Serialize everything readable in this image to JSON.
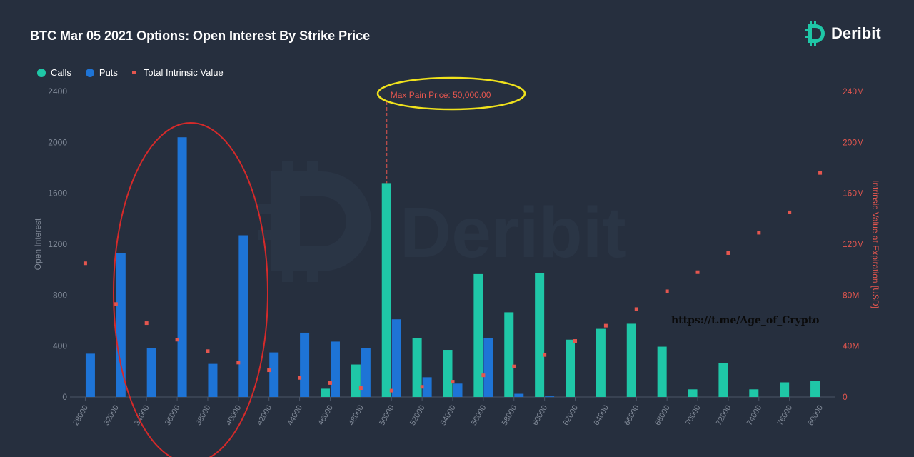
{
  "header": {
    "title": "BTC Mar 05 2021 Options: Open Interest By Strike Price",
    "brand": "Deribit",
    "watermark": "Deribit"
  },
  "legend": {
    "calls": "Calls",
    "puts": "Puts",
    "intrinsic": "Total Intrinsic Value"
  },
  "colors": {
    "background": "#262f3e",
    "calls": "#1fc7a7",
    "puts": "#1e74d6",
    "intrinsic": "#e4564f",
    "annotation_ellipse": "#f0e21c",
    "highlight_ellipse": "#d52a2a",
    "axis_text": "#7f8896"
  },
  "overlay": {
    "link": "https://t.me/Age_of_Crypto"
  },
  "chart_data": {
    "type": "bar",
    "title": "BTC Mar 05 2021 Options: Open Interest By Strike Price",
    "categories": [
      "28000",
      "32000",
      "34000",
      "36000",
      "38000",
      "40000",
      "42000",
      "44000",
      "46000",
      "48000",
      "50000",
      "52000",
      "54000",
      "56000",
      "58000",
      "60000",
      "62000",
      "64000",
      "66000",
      "68000",
      "70000",
      "72000",
      "74000",
      "76000",
      "80000"
    ],
    "series": [
      {
        "name": "Calls",
        "values": [
          0,
          0,
          0,
          0,
          0,
          0,
          0,
          0,
          65,
          255,
          1680,
          460,
          370,
          965,
          665,
          975,
          450,
          535,
          575,
          395,
          60,
          265,
          60,
          115,
          125
        ]
      },
      {
        "name": "Puts",
        "values": [
          340,
          1130,
          385,
          2040,
          260,
          1270,
          350,
          505,
          435,
          385,
          610,
          155,
          105,
          465,
          25,
          5,
          0,
          0,
          0,
          0,
          0,
          0,
          0,
          0,
          0
        ]
      }
    ],
    "intrinsic": {
      "name": "Total Intrinsic Value",
      "values": [
        105,
        73,
        58,
        45,
        36,
        27,
        21,
        15,
        11,
        7,
        5,
        8,
        12,
        17,
        24,
        33,
        44,
        56,
        69,
        83,
        98,
        113,
        129,
        145,
        176
      ]
    },
    "xlabel": "",
    "ylabel": "Open Interest",
    "ylabel_right": "Intrinsic Value at Expiration [USD]",
    "ylim": [
      0,
      2400
    ],
    "yticks": [
      "0",
      "400",
      "800",
      "1200",
      "1600",
      "2000",
      "2400"
    ],
    "ylim_right": [
      0,
      240
    ],
    "yticks_right": [
      "0",
      "40M",
      "80M",
      "120M",
      "160M",
      "200M",
      "240M"
    ],
    "annotation": {
      "label": "Max Pain Price: 50,000.00",
      "x": "50000"
    },
    "legend_position": "top-left",
    "grid": false
  }
}
